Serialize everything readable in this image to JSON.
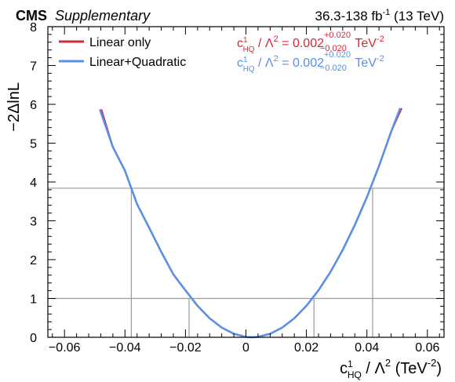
{
  "header": {
    "experiment": "CMS",
    "tag": "Supplementary",
    "lumi_prefix": "36.3-138 fb",
    "lumi_exp": "-1",
    "lumi_suffix": " (13 TeV)"
  },
  "legend": {
    "entries": [
      {
        "label": "Linear only",
        "color": "#d62839"
      },
      {
        "label": "Linear+Quadratic",
        "color": "#5b8ee6"
      }
    ]
  },
  "results": [
    {
      "coef": "c",
      "sup": "1",
      "sub": "HQ",
      "rest": " / Λ",
      "rest_sup": "2",
      "eq": " = 0.002",
      "up": "+0.020",
      "down": "−0.020",
      "unit": " TeV",
      "unit_sup": "-2",
      "color": "#d62839"
    },
    {
      "coef": "c",
      "sup": "1",
      "sub": "HQ",
      "rest": " / Λ",
      "rest_sup": "2",
      "eq": " = 0.002",
      "up": "+0.020",
      "down": "−0.020",
      "unit": " TeV",
      "unit_sup": "-2",
      "color": "#5b8ee6"
    }
  ],
  "axes": {
    "ylabel": "−2ΔlnL",
    "xlabel": {
      "coef": "c",
      "sup": "1",
      "sub": "HQ",
      "rest": " / Λ",
      "rest_sup": "2",
      "unit": " (TeV",
      "unit_sup": "-2",
      "close": ")"
    }
  },
  "chart_data": {
    "type": "line",
    "xlim": [
      -0.0655,
      0.0655
    ],
    "ylim": [
      0,
      8
    ],
    "xticks": [
      -0.06,
      -0.04,
      -0.02,
      0,
      0.02,
      0.04,
      0.06
    ],
    "xtick_labels": [
      "−0.06",
      "−0.04",
      "−0.02",
      "0",
      "0.02",
      "0.04",
      "0.06"
    ],
    "yticks": [
      0,
      1,
      2,
      3,
      4,
      5,
      6,
      7,
      8
    ],
    "ytick_labels": [
      "0",
      "1",
      "2",
      "3",
      "4",
      "5",
      "6",
      "7",
      "8"
    ],
    "hlines": [
      1,
      3.84
    ],
    "vlines": [
      {
        "x": -0.0379,
        "ymax": 3.84
      },
      {
        "x": -0.0188,
        "ymax": 1
      },
      {
        "x": 0.0225,
        "ymax": 1
      },
      {
        "x": 0.0419,
        "ymax": 3.84
      }
    ],
    "series": [
      {
        "name": "Linear only",
        "color": "#d62839",
        "x": [
          -0.0478,
          -0.044,
          -0.04,
          -0.036,
          -0.032,
          -0.028,
          -0.024,
          -0.02,
          -0.016,
          -0.012,
          -0.008,
          -0.004,
          0,
          0.002,
          0.004,
          0.008,
          0.012,
          0.016,
          0.02,
          0.024,
          0.028,
          0.032,
          0.036,
          0.04,
          0.044,
          0.048,
          0.0515
        ],
        "y": [
          5.87,
          4.9,
          4.29,
          3.43,
          2.82,
          2.2,
          1.62,
          1.21,
          0.81,
          0.49,
          0.25,
          0.09,
          0.01,
          0.0,
          0.01,
          0.09,
          0.25,
          0.49,
          0.81,
          1.21,
          1.69,
          2.25,
          2.89,
          3.61,
          4.41,
          5.29,
          5.9
        ]
      },
      {
        "name": "Linear+Quadratic",
        "color": "#5b8ee6",
        "x": [
          -0.0483,
          -0.044,
          -0.04,
          -0.036,
          -0.032,
          -0.028,
          -0.024,
          -0.02,
          -0.016,
          -0.012,
          -0.008,
          -0.004,
          0,
          0.002,
          0.004,
          0.008,
          0.012,
          0.016,
          0.02,
          0.024,
          0.028,
          0.032,
          0.036,
          0.04,
          0.044,
          0.048,
          0.051
        ],
        "y": [
          5.87,
          4.9,
          4.29,
          3.43,
          2.82,
          2.2,
          1.62,
          1.21,
          0.81,
          0.49,
          0.25,
          0.09,
          0.01,
          0.0,
          0.01,
          0.09,
          0.25,
          0.49,
          0.81,
          1.21,
          1.69,
          2.25,
          2.89,
          3.61,
          4.41,
          5.29,
          5.9
        ]
      }
    ]
  }
}
